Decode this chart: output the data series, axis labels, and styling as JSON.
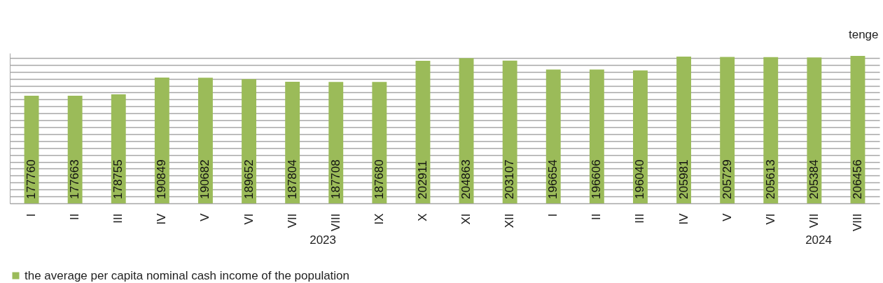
{
  "chart_data": {
    "type": "bar",
    "ylabel": "tenge",
    "categories": [
      "I",
      "II",
      "III",
      "IV",
      "V",
      "VI",
      "VII",
      "VIII",
      "IX",
      "X",
      "XI",
      "XII",
      "I",
      "II",
      "III",
      "IV",
      "V",
      "VI",
      "VII",
      "VIII"
    ],
    "series": [
      {
        "name": "the average per capita nominal cash income of the population",
        "color": "#9bbb59",
        "values": [
          177760,
          177663,
          178755,
          190849,
          190682,
          189652,
          187804,
          187708,
          187680,
          202911,
          204863,
          203107,
          196654,
          196606,
          196040,
          205981,
          205729,
          205613,
          205384,
          206456
        ]
      }
    ],
    "ylim": [
      100000,
      208500
    ],
    "grid": "y",
    "legend": "bottom",
    "data_labels": true,
    "tick_labels": "x",
    "annotations": [
      "2023",
      "2024"
    ]
  }
}
